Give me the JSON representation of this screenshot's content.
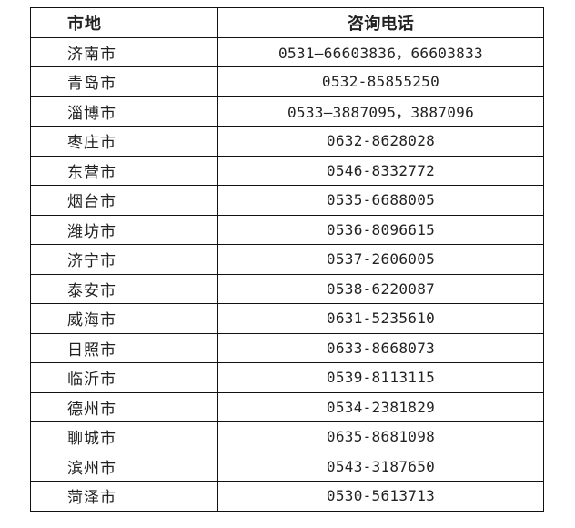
{
  "table": {
    "headers": [
      "市地",
      "咨询电话"
    ],
    "rows": [
      {
        "city": "济南市",
        "phone": "0531—66603836，66603833"
      },
      {
        "city": "青岛市",
        "phone": "0532-85855250"
      },
      {
        "city": "淄博市",
        "phone": "0533—3887095，3887096"
      },
      {
        "city": "枣庄市",
        "phone": "0632-8628028"
      },
      {
        "city": "东营市",
        "phone": "0546-8332772"
      },
      {
        "city": "烟台市",
        "phone": "0535-6688005"
      },
      {
        "city": "潍坊市",
        "phone": "0536-8096615"
      },
      {
        "city": "济宁市",
        "phone": "0537-2606005"
      },
      {
        "city": "泰安市",
        "phone": "0538-6220087"
      },
      {
        "city": "威海市",
        "phone": "0631-5235610"
      },
      {
        "city": "日照市",
        "phone": "0633-8668073"
      },
      {
        "city": "临沂市",
        "phone": "0539-8113115"
      },
      {
        "city": "德州市",
        "phone": "0534-2381829"
      },
      {
        "city": "聊城市",
        "phone": "0635-8681098"
      },
      {
        "city": "滨州市",
        "phone": "0543-3187650"
      },
      {
        "city": "菏泽市",
        "phone": "0530-5613713"
      }
    ]
  }
}
